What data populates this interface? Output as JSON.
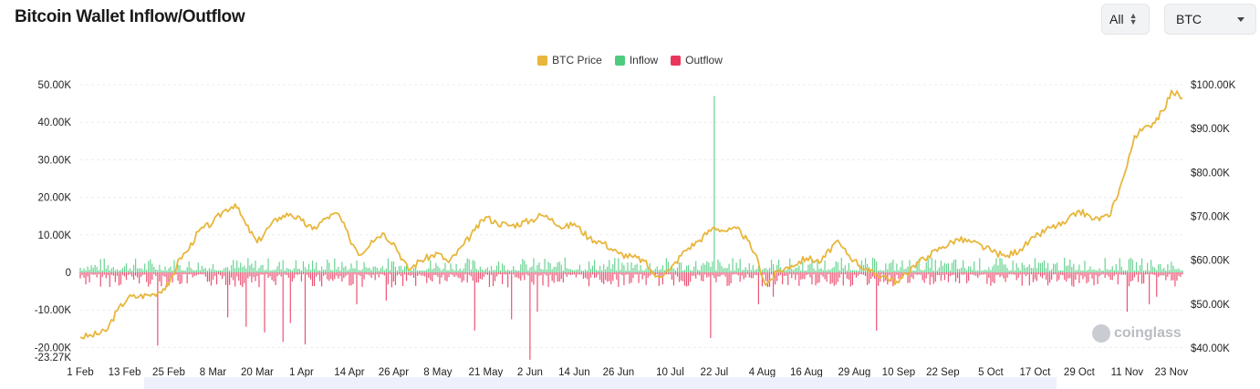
{
  "header": {
    "title": "Bitcoin Wallet Inflow/Outflow",
    "range_select": "All",
    "asset_select": "BTC"
  },
  "watermark": "coinglass",
  "colors": {
    "price": "#e8b63c",
    "inflow": "#4fcb7f",
    "outflow": "#e8365d",
    "grid": "#ececec"
  },
  "chart_data": {
    "type": "bar+line",
    "legend": [
      "BTC Price",
      "Inflow",
      "Outflow"
    ],
    "legend_position": "top-center",
    "y_left": {
      "range": [
        -23270,
        50000
      ],
      "ticks": [
        50000,
        40000,
        30000,
        20000,
        10000,
        0,
        -10000,
        -20000,
        -23270
      ],
      "tick_labels": [
        "50.00K",
        "40.00K",
        "30.00K",
        "20.00K",
        "10.00K",
        "0",
        "-10.00K",
        "-20.00K",
        "-23.27K"
      ]
    },
    "y_right": {
      "range": [
        37600,
        100000
      ],
      "ticks": [
        100000,
        90000,
        80000,
        70000,
        60000,
        50000,
        40000
      ],
      "tick_labels": [
        "$100.00K",
        "$90.00K",
        "$80.00K",
        "$70.00K",
        "$60.00K",
        "$50.00K",
        "$40.00K"
      ]
    },
    "x_tick_labels": [
      "1 Feb",
      "13 Feb",
      "25 Feb",
      "8 Mar",
      "20 Mar",
      "1 Apr",
      "14 Apr",
      "26 Apr",
      "8 May",
      "21 May",
      "2 Jun",
      "14 Jun",
      "26 Jun",
      "10 Jul",
      "22 Jul",
      "4 Aug",
      "16 Aug",
      "29 Aug",
      "10 Sep",
      "22 Sep",
      "5 Oct",
      "17 Oct",
      "29 Oct",
      "11 Nov",
      "23 Nov"
    ],
    "grid": true,
    "btc_price": {
      "dates": [
        "1 Feb",
        "4 Feb",
        "8 Feb",
        "11 Feb",
        "14 Feb",
        "17 Feb",
        "21 Feb",
        "25 Feb",
        "28 Feb",
        "1 Mar",
        "4 Mar",
        "8 Mar",
        "11 Mar",
        "14 Mar",
        "17 Mar",
        "20 Mar",
        "23 Mar",
        "26 Mar",
        "29 Mar",
        "1 Apr",
        "4 Apr",
        "8 Apr",
        "11 Apr",
        "14 Apr",
        "17 Apr",
        "20 Apr",
        "23 Apr",
        "26 Apr",
        "30 Apr",
        "3 May",
        "8 May",
        "11 May",
        "15 May",
        "18 May",
        "21 May",
        "24 May",
        "28 May",
        "2 Jun",
        "5 Jun",
        "8 Jun",
        "11 Jun",
        "14 Jun",
        "18 Jun",
        "22 Jun",
        "26 Jun",
        "30 Jun",
        "3 Jul",
        "6 Jul",
        "10 Jul",
        "14 Jul",
        "18 Jul",
        "22 Jul",
        "25 Jul",
        "29 Jul",
        "2 Aug",
        "5 Aug",
        "8 Aug",
        "12 Aug",
        "16 Aug",
        "20 Aug",
        "24 Aug",
        "29 Aug",
        "2 Sep",
        "6 Sep",
        "10 Sep",
        "14 Sep",
        "18 Sep",
        "22 Sep",
        "26 Sep",
        "30 Sep",
        "5 Oct",
        "9 Oct",
        "13 Oct",
        "17 Oct",
        "21 Oct",
        "25 Oct",
        "29 Oct",
        "2 Nov",
        "6 Nov",
        "9 Nov",
        "11 Nov",
        "13 Nov",
        "17 Nov",
        "21 Nov",
        "23 Nov",
        "26 Nov"
      ],
      "values": [
        42500,
        42800,
        43800,
        48500,
        51500,
        51800,
        52300,
        54300,
        60500,
        62000,
        66500,
        68600,
        71300,
        72800,
        68000,
        64000,
        67400,
        69800,
        70600,
        69000,
        67000,
        69800,
        70600,
        65000,
        61200,
        64500,
        66200,
        64000,
        57800,
        59800,
        61600,
        59500,
        63500,
        66800,
        69900,
        68500,
        67900,
        69000,
        70300,
        69500,
        67300,
        68400,
        65100,
        63900,
        61500,
        60700,
        59800,
        56200,
        57800,
        62200,
        64600,
        67600,
        66700,
        66900,
        61600,
        54300,
        57300,
        58800,
        60500,
        59700,
        64200,
        60000,
        57300,
        56400,
        54900,
        58800,
        61000,
        63100,
        64800,
        64100,
        62200,
        60800,
        62500,
        65200,
        67400,
        68300,
        71300,
        69300,
        69900,
        76500,
        81500,
        88400,
        90600,
        94100,
        98700,
        97000
      ]
    },
    "inflow": {
      "baseline_range": [
        500,
        4000
      ],
      "spike": {
        "date": "22 Jul",
        "value": 47000
      }
    },
    "outflow": {
      "baseline_range": [
        -500,
        -4000
      ],
      "spikes": [
        {
          "date": "22 Feb",
          "value": -19500
        },
        {
          "date": "12 Mar",
          "value": -12000
        },
        {
          "date": "17 Mar",
          "value": -14500
        },
        {
          "date": "22 Mar",
          "value": -16000
        },
        {
          "date": "27 Mar",
          "value": -18500
        },
        {
          "date": "29 Mar",
          "value": -13500
        },
        {
          "date": "2 Apr",
          "value": -19200
        },
        {
          "date": "16 Apr",
          "value": -8500
        },
        {
          "date": "24 Apr",
          "value": -7500
        },
        {
          "date": "18 May",
          "value": -15500
        },
        {
          "date": "28 May",
          "value": -12500
        },
        {
          "date": "2 Jun",
          "value": -23270
        },
        {
          "date": "4 Jun",
          "value": -10500
        },
        {
          "date": "21 Jul",
          "value": -17500
        },
        {
          "date": "3 Aug",
          "value": -8500
        },
        {
          "date": "7 Aug",
          "value": -6500
        },
        {
          "date": "4 Sep",
          "value": -15500
        },
        {
          "date": "11 Nov",
          "value": -10500
        },
        {
          "date": "17 Nov",
          "value": -8500
        },
        {
          "date": "19 Nov",
          "value": -6500
        }
      ]
    }
  }
}
